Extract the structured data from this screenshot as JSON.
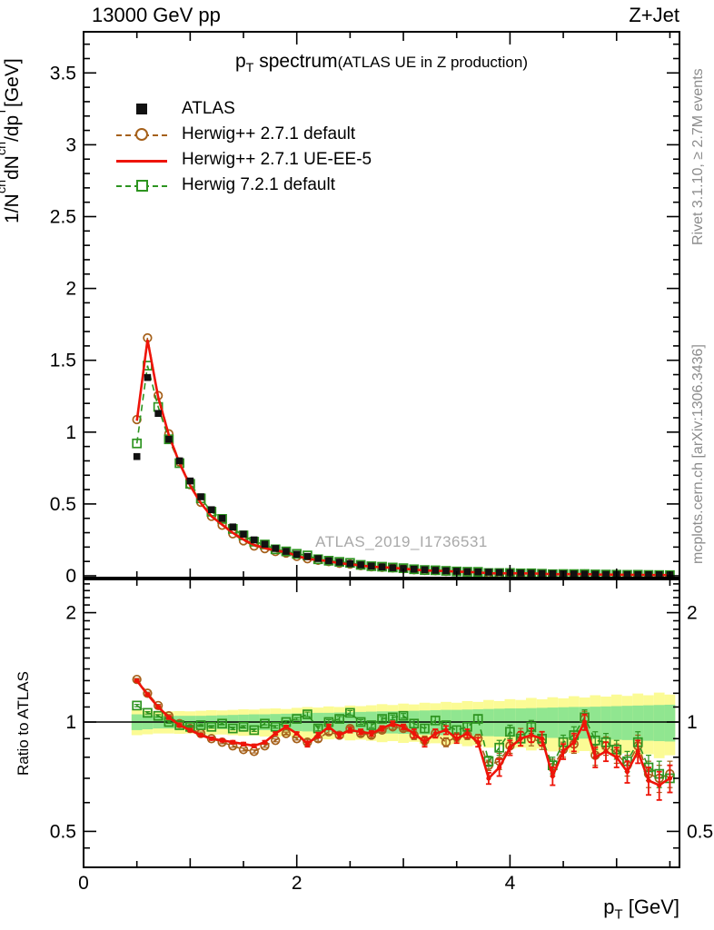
{
  "header": {
    "left": "13000 GeV pp",
    "right": "Z+Jet"
  },
  "title": {
    "main": "p_{T} spectrum",
    "paren": "(ATLAS UE in Z production)"
  },
  "watermark": "ATLAS_2019_I1736531",
  "side_notes": {
    "top": "Rivet 3.1.10, ≥ 2.7M events",
    "bottom": "mcplots.cern.ch [arXiv:1306.3436]"
  },
  "axes": {
    "main_ylabel": "1/N_{ch} dN_{ch}/dp_{T} [GeV]",
    "ratio_ylabel": "Ratio to ATLAS",
    "xlabel": "p_{T} [GeV]",
    "x_major_ticks": [
      0,
      2,
      4
    ],
    "main_y_major_ticks": [
      0,
      0.5,
      1,
      1.5,
      2,
      2.5,
      3,
      3.5
    ],
    "ratio_y_major_ticks": [
      0.5,
      1,
      2
    ]
  },
  "legend": [
    {
      "label": "ATLAS",
      "marker": "filled-square",
      "color": "#111111"
    },
    {
      "label": "Herwig++ 2.7.1 default",
      "marker": "open-circle-dashed",
      "color": "#a5601a"
    },
    {
      "label": "Herwig++ 2.7.1 UE-EE-5",
      "marker": "solid-line",
      "color": "#ee1409"
    },
    {
      "label": "Herwig 7.2.1 default",
      "marker": "open-square-dashed",
      "color": "#2d9420"
    }
  ],
  "colors": {
    "band_inner": "#90e690",
    "band_outer": "#fbfb95",
    "frame": "#000000",
    "gray_text": "#8c8c8c"
  },
  "chart_data": {
    "type": "line",
    "title": "p_{T} spectrum (ATLAS UE in Z production)",
    "xlabel": "p_{T} [GeV]",
    "main_ylabel": "1/N_{ch} dN_{ch}/dp_{T} [GeV]",
    "ratio_ylabel": "Ratio to ATLAS",
    "xlim": [
      0,
      5.59
    ],
    "main_ylim": [
      0,
      3.79
    ],
    "ratio_ylim": [
      0.4,
      2.47
    ],
    "ratio_yscale": "log",
    "x_bin_width": 0.1,
    "x": [
      0.5,
      0.6,
      0.7,
      0.8,
      0.9,
      1.0,
      1.1,
      1.2,
      1.3,
      1.4,
      1.5,
      1.6,
      1.7,
      1.8,
      1.9,
      2.0,
      2.1,
      2.2,
      2.3,
      2.4,
      2.5,
      2.6,
      2.7,
      2.8,
      2.9,
      3.0,
      3.1,
      3.2,
      3.3,
      3.4,
      3.5,
      3.6,
      3.7,
      3.8,
      3.9,
      4.0,
      4.1,
      4.2,
      4.3,
      4.4,
      4.5,
      4.6,
      4.7,
      4.8,
      4.9,
      5.0,
      5.1,
      5.2,
      5.3,
      5.4,
      5.5
    ],
    "atlas_values": [
      0.83,
      1.38,
      1.13,
      0.95,
      0.8,
      0.66,
      0.55,
      0.46,
      0.4,
      0.34,
      0.29,
      0.25,
      0.22,
      0.19,
      0.17,
      0.15,
      0.135,
      0.12,
      0.105,
      0.095,
      0.085,
      0.076,
      0.068,
      0.062,
      0.056,
      0.051,
      0.046,
      0.042,
      0.038,
      0.035,
      0.032,
      0.029,
      0.027,
      0.025,
      0.023,
      0.021,
      0.019,
      0.018,
      0.016,
      0.015,
      0.014,
      0.013,
      0.012,
      0.011,
      0.01,
      0.0095,
      0.009,
      0.0085,
      0.008,
      0.0075,
      0.007
    ],
    "series_ratios": [
      {
        "name": "Herwig++ 2.7.1 default",
        "color": "#a5601a",
        "style": "dashed-circle",
        "ratio": [
          1.31,
          1.2,
          1.11,
          1.04,
          0.99,
          0.96,
          0.93,
          0.9,
          0.88,
          0.86,
          0.84,
          0.83,
          0.86,
          0.89,
          0.93,
          0.9,
          0.88,
          0.9,
          0.94,
          0.92,
          0.96,
          0.93,
          0.92,
          0.95,
          0.97,
          0.96,
          0.92,
          0.89,
          0.93,
          0.88,
          0.91,
          0.92,
          0.9,
          0.76,
          0.78,
          0.86,
          0.92,
          0.9,
          0.88,
          0.75,
          0.84,
          0.87,
          1.02,
          0.81,
          0.86,
          0.82,
          0.76,
          0.86,
          0.72,
          0.7,
          0.72
        ]
      },
      {
        "name": "Herwig++ 2.7.1 UE-EE-5",
        "color": "#ee1409",
        "style": "solid",
        "ratio": [
          1.3,
          1.19,
          1.1,
          1.03,
          0.98,
          0.95,
          0.92,
          0.9,
          0.89,
          0.88,
          0.87,
          0.86,
          0.88,
          0.93,
          0.97,
          0.93,
          0.87,
          0.92,
          0.97,
          0.92,
          0.95,
          0.94,
          0.93,
          0.96,
          0.99,
          0.97,
          0.93,
          0.88,
          0.93,
          0.95,
          0.9,
          0.93,
          0.88,
          0.7,
          0.75,
          0.85,
          0.9,
          0.92,
          0.9,
          0.71,
          0.83,
          0.88,
          1.0,
          0.8,
          0.83,
          0.8,
          0.73,
          0.83,
          0.69,
          0.67,
          0.7
        ]
      },
      {
        "name": "Herwig 7.2.1 default",
        "color": "#2d9420",
        "style": "dashed-square",
        "ratio": [
          1.11,
          1.06,
          1.04,
          1.0,
          0.98,
          0.97,
          0.98,
          0.97,
          0.99,
          0.96,
          0.97,
          0.95,
          0.99,
          0.97,
          1.0,
          1.02,
          1.05,
          0.96,
          1.0,
          1.02,
          1.06,
          1.0,
          0.98,
          1.02,
          1.03,
          1.04,
          0.99,
          0.96,
          1.01,
          0.98,
          0.95,
          0.97,
          1.02,
          0.78,
          0.85,
          0.94,
          0.9,
          0.97,
          0.9,
          0.76,
          0.88,
          0.92,
          1.03,
          0.89,
          0.88,
          0.84,
          0.78,
          0.88,
          0.75,
          0.72,
          0.7
        ]
      }
    ],
    "ratio_err": [
      0.008,
      0.008,
      0.008,
      0.008,
      0.008,
      0.008,
      0.008,
      0.008,
      0.008,
      0.008,
      0.008,
      0.008,
      0.008,
      0.008,
      0.008,
      0.008,
      0.015,
      0.015,
      0.015,
      0.015,
      0.015,
      0.015,
      0.015,
      0.015,
      0.015,
      0.015,
      0.025,
      0.025,
      0.025,
      0.025,
      0.025,
      0.025,
      0.025,
      0.025,
      0.04,
      0.04,
      0.04,
      0.04,
      0.04,
      0.04,
      0.04,
      0.05,
      0.05,
      0.05,
      0.05,
      0.05,
      0.05,
      0.06,
      0.06,
      0.06,
      0.06
    ],
    "band_green_halfwidth": [
      0.05,
      0.045,
      0.04,
      0.04,
      0.04,
      0.04,
      0.04,
      0.042,
      0.044,
      0.046,
      0.048,
      0.05,
      0.05,
      0.052,
      0.054,
      0.056,
      0.058,
      0.06,
      0.06,
      0.062,
      0.064,
      0.066,
      0.068,
      0.07,
      0.07,
      0.072,
      0.074,
      0.076,
      0.078,
      0.08,
      0.08,
      0.082,
      0.084,
      0.086,
      0.088,
      0.09,
      0.09,
      0.092,
      0.094,
      0.096,
      0.098,
      0.1,
      0.1,
      0.102,
      0.104,
      0.106,
      0.108,
      0.11,
      0.112,
      0.114,
      0.116
    ],
    "band_yellow_halfwidth": [
      0.08,
      0.075,
      0.07,
      0.07,
      0.072,
      0.07,
      0.074,
      0.078,
      0.076,
      0.08,
      0.084,
      0.082,
      0.088,
      0.09,
      0.086,
      0.094,
      0.1,
      0.096,
      0.104,
      0.1,
      0.11,
      0.106,
      0.112,
      0.12,
      0.114,
      0.124,
      0.118,
      0.13,
      0.126,
      0.136,
      0.13,
      0.142,
      0.136,
      0.15,
      0.142,
      0.156,
      0.15,
      0.165,
      0.155,
      0.17,
      0.162,
      0.178,
      0.168,
      0.185,
      0.175,
      0.19,
      0.18,
      0.198,
      0.185,
      0.205,
      0.19
    ]
  }
}
